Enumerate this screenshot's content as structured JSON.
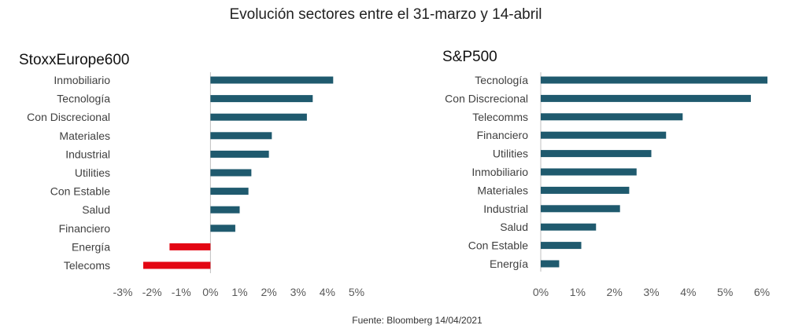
{
  "title": "Evolución sectores entre el 31-marzo y 14-abril",
  "source": "Fuente: Bloomberg  14/04/2021",
  "colors": {
    "positive": "#1f5a6e",
    "negative": "#e30613",
    "axis": "#bfbfbf"
  },
  "chart_data": [
    {
      "type": "bar",
      "orientation": "horizontal",
      "title": "StoxxEurope600",
      "categories": [
        "Inmobiliario",
        "Tecnología",
        "Con Discrecional",
        "Materiales",
        "Industrial",
        "Utilities",
        "Con Estable",
        "Salud",
        "Financiero",
        "Energía",
        "Telecoms"
      ],
      "values": [
        4.2,
        3.5,
        3.3,
        2.1,
        2.0,
        1.4,
        1.3,
        1.0,
        0.85,
        -1.4,
        -2.3
      ],
      "xlim": [
        -3,
        5
      ],
      "xticks": [
        -3,
        -2,
        -1,
        0,
        1,
        2,
        3,
        4,
        5
      ],
      "tick_labels": [
        "-3%",
        "-2%",
        "-1%",
        "0%",
        "1%",
        "2%",
        "3%",
        "4%",
        "5%"
      ],
      "grid": false,
      "legend": "none"
    },
    {
      "type": "bar",
      "orientation": "horizontal",
      "title": "S&P500",
      "categories": [
        "Tecnología",
        "Con Discrecional",
        "Telecomms",
        "Financiero",
        "Utilities",
        "Inmobiliario",
        "Materiales",
        "Industrial",
        "Salud",
        "Con Estable",
        "Energía"
      ],
      "values": [
        6.15,
        5.7,
        3.85,
        3.4,
        3.0,
        2.6,
        2.4,
        2.15,
        1.5,
        1.1,
        0.5
      ],
      "xlim": [
        0,
        6
      ],
      "xticks": [
        0,
        1,
        2,
        3,
        4,
        5,
        6
      ],
      "tick_labels": [
        "0%",
        "1%",
        "2%",
        "3%",
        "4%",
        "5%",
        "6%"
      ],
      "grid": false,
      "legend": "none"
    }
  ]
}
